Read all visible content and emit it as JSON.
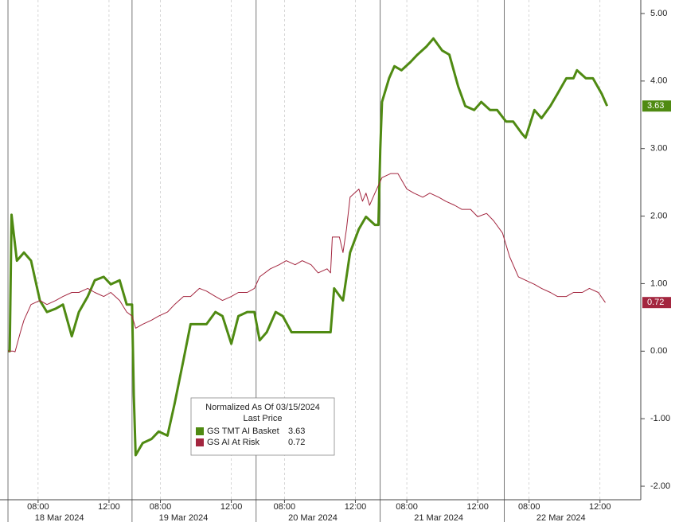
{
  "chart_data": {
    "type": "line",
    "xlim": [
      -0.45,
      35.7
    ],
    "ylim": [
      -2.2,
      5.2
    ],
    "yticks": [
      {
        "value": 5,
        "label": "5.00"
      },
      {
        "value": 4,
        "label": "4.00"
      },
      {
        "value": 3,
        "label": "3.00"
      },
      {
        "value": 2,
        "label": "2.00"
      },
      {
        "value": 1,
        "label": "1.00"
      },
      {
        "value": 0,
        "label": "0.00"
      },
      {
        "value": -1,
        "label": "-1.00"
      },
      {
        "value": -2,
        "label": "-2.00"
      }
    ],
    "xticks": [
      {
        "value": 1.7,
        "label": "08:00"
      },
      {
        "value": 5.7,
        "label": "12:00"
      },
      {
        "value": 8.6,
        "label": "08:00"
      },
      {
        "value": 12.6,
        "label": "12:00"
      },
      {
        "value": 15.6,
        "label": "08:00"
      },
      {
        "value": 19.6,
        "label": "12:00"
      },
      {
        "value": 22.5,
        "label": "08:00"
      },
      {
        "value": 26.5,
        "label": "12:00"
      },
      {
        "value": 29.4,
        "label": "08:00"
      },
      {
        "value": 33.4,
        "label": "12:00"
      }
    ],
    "day_breaks": [
      0,
      7,
      14,
      21,
      28
    ],
    "day_labels": [
      {
        "value": 2.9,
        "label": "18 Mar 2024"
      },
      {
        "value": 9.9,
        "label": "19 Mar 2024"
      },
      {
        "value": 17.2,
        "label": "20 Mar 2024"
      },
      {
        "value": 24.3,
        "label": "21 Mar 2024"
      },
      {
        "value": 31.2,
        "label": "22 Mar 2024"
      }
    ],
    "grid": true,
    "legend": {
      "title": "Normalized As Of 03/15/2024",
      "subtitle": "Last Price"
    },
    "series": [
      {
        "name": "GS TMT AI Basket",
        "color": "#4f8a12",
        "width": 3,
        "last": {
          "value": 3.63,
          "label": "3.63"
        },
        "x": [
          0,
          0.1,
          0.2,
          0.5,
          0.9,
          1.3,
          1.8,
          2.2,
          2.7,
          3.1,
          3.6,
          4.0,
          4.5,
          4.9,
          5.4,
          5.8,
          6.3,
          6.7,
          7.0,
          7.1,
          7.2,
          7.6,
          8.1,
          8.5,
          9.0,
          9.4,
          9.9,
          10.3,
          10.8,
          11.2,
          11.7,
          12.1,
          12.6,
          13.0,
          13.5,
          13.9,
          14.2,
          14.6,
          15.1,
          15.5,
          16.0,
          16.4,
          16.9,
          17.3,
          17.8,
          18.2,
          18.4,
          18.9,
          19.3,
          19.8,
          20.2,
          20.7,
          20.9,
          21.0,
          21.1,
          21.5,
          21.8,
          22.2,
          22.7,
          23.1,
          23.6,
          24.0,
          24.5,
          24.9,
          25.4,
          25.8,
          26.3,
          26.7,
          27.2,
          27.6,
          28.1,
          28.5,
          29.0,
          29.2,
          29.7,
          30.1,
          30.6,
          31.0,
          31.5,
          31.9,
          32.1,
          32.6,
          33.0,
          33.5,
          33.8
        ],
        "values": [
          0,
          0,
          2.02,
          1.34,
          1.46,
          1.34,
          0.75,
          0.58,
          0.63,
          0.69,
          0.22,
          0.58,
          0.81,
          1.05,
          1.1,
          0.99,
          1.05,
          0.69,
          0.69,
          -0.66,
          -1.54,
          -1.36,
          -1.3,
          -1.19,
          -1.25,
          -0.78,
          -0.13,
          0.4,
          0.4,
          0.4,
          0.58,
          0.52,
          0.11,
          0.52,
          0.58,
          0.58,
          0.16,
          0.28,
          0.58,
          0.52,
          0.28,
          0.28,
          0.28,
          0.28,
          0.28,
          0.28,
          0.93,
          0.75,
          1.46,
          1.81,
          1.99,
          1.87,
          1.87,
          2.98,
          3.69,
          4.04,
          4.22,
          4.16,
          4.28,
          4.39,
          4.51,
          4.63,
          4.45,
          4.39,
          3.92,
          3.63,
          3.57,
          3.69,
          3.57,
          3.57,
          3.4,
          3.4,
          3.22,
          3.16,
          3.57,
          3.45,
          3.63,
          3.81,
          4.04,
          4.04,
          4.16,
          4.04,
          4.04,
          3.81,
          3.63
        ]
      },
      {
        "name": "GS AI At Risk",
        "color": "#a3263f",
        "width": 1,
        "last": {
          "value": 0.72,
          "label": "0.72"
        },
        "x": [
          0,
          0.3,
          0.4,
          0.7,
          0.9,
          1.3,
          1.8,
          2.2,
          2.7,
          3.1,
          3.6,
          4.0,
          4.5,
          4.9,
          5.4,
          5.8,
          6.3,
          6.7,
          7.0,
          7.2,
          7.6,
          8.1,
          8.5,
          9.0,
          9.4,
          9.9,
          10.3,
          10.8,
          11.2,
          11.7,
          12.1,
          12.6,
          13.0,
          13.5,
          13.9,
          14.2,
          14.8,
          15.3,
          15.7,
          16.2,
          16.6,
          17.1,
          17.5,
          18.0,
          18.2,
          18.3,
          18.7,
          18.9,
          19.1,
          19.3,
          19.8,
          20.0,
          20.2,
          20.4,
          20.7,
          21.1,
          21.6,
          22.0,
          22.5,
          22.9,
          23.4,
          23.8,
          24.3,
          24.7,
          25.2,
          25.6,
          26.1,
          26.5,
          27.0,
          27.4,
          27.9,
          28.3,
          28.8,
          29.2,
          29.7,
          30.1,
          30.6,
          31.0,
          31.5,
          31.9,
          32.4,
          32.8,
          33.3,
          33.7
        ],
        "values": [
          0,
          0,
          -0.01,
          0.28,
          0.46,
          0.69,
          0.75,
          0.69,
          0.75,
          0.81,
          0.87,
          0.87,
          0.93,
          0.87,
          0.81,
          0.87,
          0.75,
          0.58,
          0.52,
          0.34,
          0.4,
          0.46,
          0.52,
          0.58,
          0.69,
          0.81,
          0.81,
          0.93,
          0.89,
          0.81,
          0.75,
          0.81,
          0.87,
          0.87,
          0.93,
          1.1,
          1.22,
          1.28,
          1.34,
          1.28,
          1.34,
          1.28,
          1.16,
          1.22,
          1.16,
          1.69,
          1.69,
          1.46,
          1.81,
          2.28,
          2.4,
          2.22,
          2.34,
          2.16,
          2.34,
          2.57,
          2.63,
          2.63,
          2.4,
          2.34,
          2.28,
          2.34,
          2.28,
          2.22,
          2.16,
          2.1,
          2.1,
          1.99,
          2.04,
          1.93,
          1.75,
          1.4,
          1.1,
          1.05,
          0.99,
          0.93,
          0.87,
          0.81,
          0.81,
          0.87,
          0.87,
          0.93,
          0.87,
          0.72
        ]
      }
    ]
  }
}
